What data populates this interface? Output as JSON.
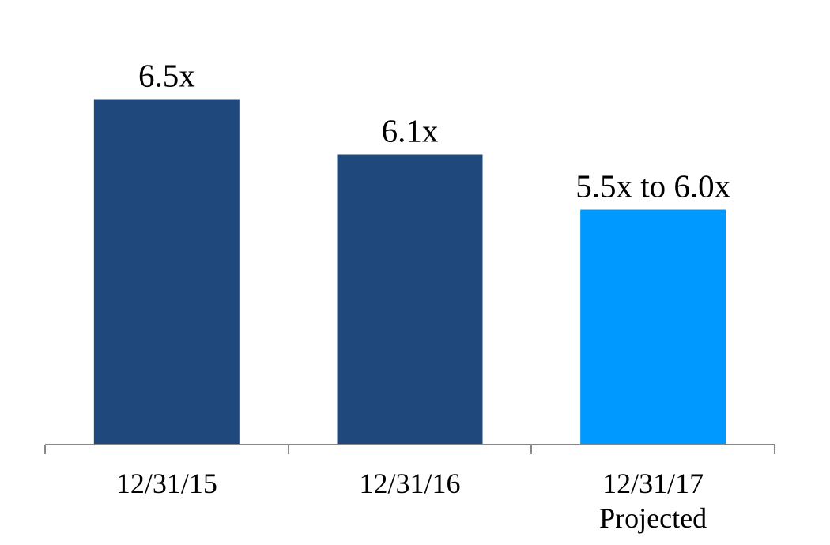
{
  "chart_data": {
    "type": "bar",
    "categories": [
      "12/31/15",
      "12/31/16",
      "12/31/17 Projected"
    ],
    "values": [
      6.5,
      6.1,
      5.7
    ],
    "value_labels": [
      "6.5x",
      "6.1x",
      "5.5x to 6.0x"
    ],
    "colors": [
      "#1f497d",
      "#1f497d",
      "#0099ff"
    ],
    "ylim": [
      4,
      7
    ]
  }
}
